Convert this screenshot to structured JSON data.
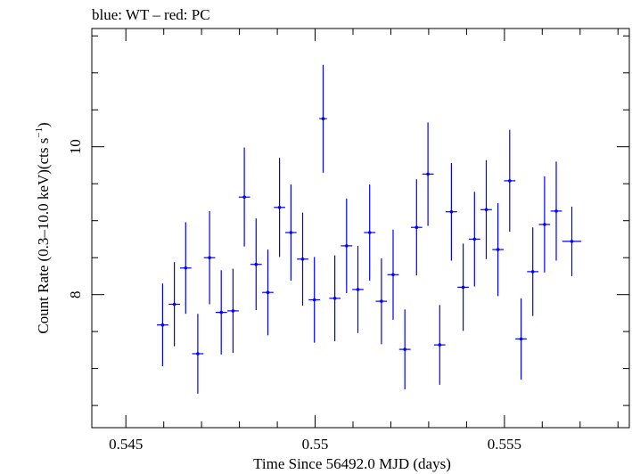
{
  "chart_data": {
    "type": "scatter",
    "title": "blue: WT – red: PC",
    "xlabel": "Time Since 56492.0 MJD (days)",
    "ylabel": "Count Rate (0.3–10.0 keV)(cts s",
    "ylabel_sup": "−1",
    "ylabel_end": ")",
    "xlim": [
      0.5441,
      0.5583
    ],
    "ylim": [
      6.2,
      11.6
    ],
    "x_ticks": [
      0.545,
      0.55,
      0.555
    ],
    "x_tick_labels": [
      "0.545",
      "0.55",
      "0.555"
    ],
    "y_ticks": [
      8,
      10
    ],
    "y_tick_labels": [
      "8",
      "10"
    ],
    "grid": false,
    "series": [
      {
        "color": "#0000ff",
        "points": [
          {
            "x": 0.54597,
            "xerr": 0.00015,
            "y": 7.59,
            "yerr": 0.56
          },
          {
            "x": 0.54628,
            "xerr": 0.00015,
            "y": 7.87,
            "yerr": 0.57
          },
          {
            "x": 0.54658,
            "xerr": 0.00015,
            "y": 8.36,
            "yerr": 0.62
          },
          {
            "x": 0.5469,
            "xerr": 0.00015,
            "y": 7.2,
            "yerr": 0.54
          },
          {
            "x": 0.54721,
            "xerr": 0.00015,
            "y": 8.5,
            "yerr": 0.63
          },
          {
            "x": 0.54752,
            "xerr": 0.00015,
            "y": 7.76,
            "yerr": 0.57
          },
          {
            "x": 0.54783,
            "xerr": 0.00015,
            "y": 7.78,
            "yerr": 0.57
          },
          {
            "x": 0.54813,
            "xerr": 0.00015,
            "y": 9.32,
            "yerr": 0.67
          },
          {
            "x": 0.54844,
            "xerr": 0.00015,
            "y": 8.41,
            "yerr": 0.62
          },
          {
            "x": 0.54875,
            "xerr": 0.00015,
            "y": 8.03,
            "yerr": 0.58
          },
          {
            "x": 0.54906,
            "xerr": 0.00015,
            "y": 9.18,
            "yerr": 0.67
          },
          {
            "x": 0.54936,
            "xerr": 0.00015,
            "y": 8.84,
            "yerr": 0.65
          },
          {
            "x": 0.54967,
            "xerr": 0.00015,
            "y": 8.48,
            "yerr": 0.63
          },
          {
            "x": 0.54998,
            "xerr": 0.00015,
            "y": 7.93,
            "yerr": 0.58
          },
          {
            "x": 0.55021,
            "xerr": 0.0001,
            "y": 10.38,
            "yerr": 0.73
          },
          {
            "x": 0.55052,
            "xerr": 0.00015,
            "y": 7.95,
            "yerr": 0.58
          },
          {
            "x": 0.55083,
            "xerr": 0.00015,
            "y": 8.66,
            "yerr": 0.64
          },
          {
            "x": 0.55113,
            "xerr": 0.00015,
            "y": 8.07,
            "yerr": 0.59
          },
          {
            "x": 0.55144,
            "xerr": 0.00015,
            "y": 8.84,
            "yerr": 0.65
          },
          {
            "x": 0.55175,
            "xerr": 0.00015,
            "y": 7.91,
            "yerr": 0.58
          },
          {
            "x": 0.55206,
            "xerr": 0.00015,
            "y": 8.27,
            "yerr": 0.61
          },
          {
            "x": 0.55237,
            "xerr": 0.00015,
            "y": 7.26,
            "yerr": 0.54
          },
          {
            "x": 0.55268,
            "xerr": 0.00015,
            "y": 8.91,
            "yerr": 0.65
          },
          {
            "x": 0.55298,
            "xerr": 0.00015,
            "y": 9.63,
            "yerr": 0.7
          },
          {
            "x": 0.55329,
            "xerr": 0.00015,
            "y": 7.32,
            "yerr": 0.54
          },
          {
            "x": 0.5536,
            "xerr": 0.00015,
            "y": 9.12,
            "yerr": 0.66
          },
          {
            "x": 0.55391,
            "xerr": 0.00015,
            "y": 8.1,
            "yerr": 0.59
          },
          {
            "x": 0.55421,
            "xerr": 0.00015,
            "y": 8.75,
            "yerr": 0.64
          },
          {
            "x": 0.55452,
            "xerr": 0.00015,
            "y": 9.15,
            "yerr": 0.67
          },
          {
            "x": 0.55483,
            "xerr": 0.00015,
            "y": 8.61,
            "yerr": 0.63
          },
          {
            "x": 0.55514,
            "xerr": 0.00015,
            "y": 9.54,
            "yerr": 0.69
          },
          {
            "x": 0.55544,
            "xerr": 0.00015,
            "y": 7.4,
            "yerr": 0.55
          },
          {
            "x": 0.55575,
            "xerr": 0.00015,
            "y": 8.31,
            "yerr": 0.6
          },
          {
            "x": 0.55606,
            "xerr": 0.00015,
            "y": 8.95,
            "yerr": 0.65
          },
          {
            "x": 0.55637,
            "xerr": 0.00015,
            "y": 9.13,
            "yerr": 0.67
          },
          {
            "x": 0.55678,
            "xerr": 0.00025,
            "y": 8.72,
            "yerr": 0.47
          }
        ]
      }
    ]
  }
}
